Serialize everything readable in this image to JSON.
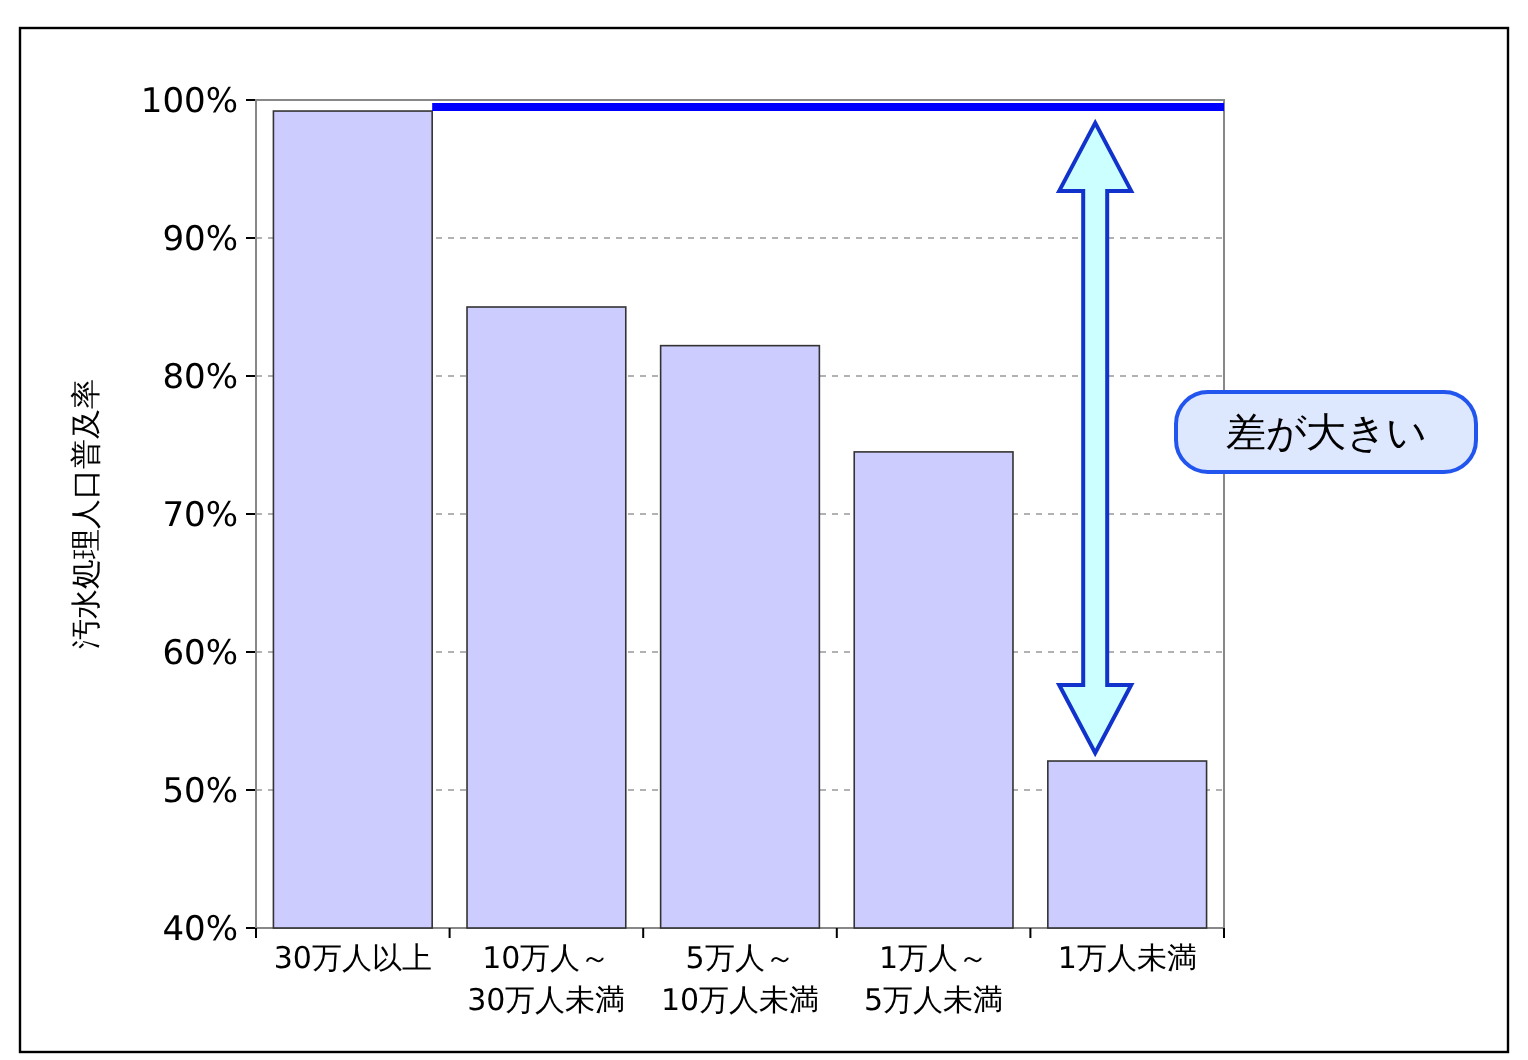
{
  "chart_data": {
    "type": "bar",
    "ylabel": "汚水処理人口普及率",
    "categories": [
      "30万人以上",
      "10万人～\n30万人未満",
      "5万人～\n10万人未満",
      "1万人～\n5万人未満",
      "1万人未満"
    ],
    "values": [
      99.2,
      85,
      82.2,
      74.5,
      52.1
    ],
    "color": "#ccccff",
    "ylim": [
      40,
      100
    ],
    "yticks": [
      {
        "value": 40,
        "label": "40%"
      },
      {
        "value": 50,
        "label": "50%"
      },
      {
        "value": 60,
        "label": "60%"
      },
      {
        "value": 70,
        "label": "70%"
      },
      {
        "value": 80,
        "label": "80%"
      },
      {
        "value": 90,
        "label": "90%"
      },
      {
        "value": 100,
        "label": "100%"
      }
    ],
    "grid": "y",
    "ref_lines": [
      {
        "axis": "y",
        "value": 99.5,
        "color": "#0000ff"
      }
    ],
    "annotations": [
      "差が大きい"
    ]
  }
}
